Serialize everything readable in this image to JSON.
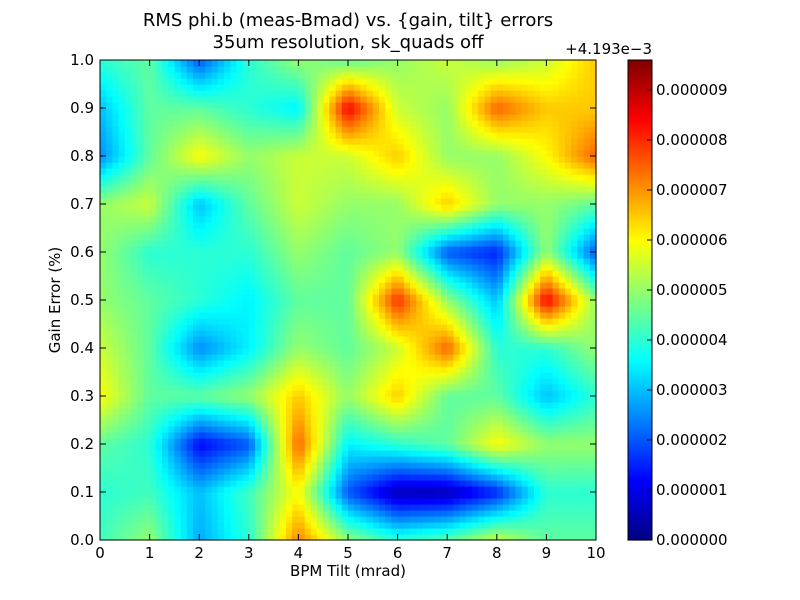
{
  "chart_data": {
    "type": "heatmap",
    "title": "RMS phi.b (meas-Bmad) vs. {gain, tilt} errors",
    "subtitle": "35um resolution, sk_quads off",
    "xlabel": "BPM Tilt (mrad)",
    "ylabel": "Gain Error (%)",
    "xlim": [
      0,
      10
    ],
    "ylim": [
      0,
      1.0
    ],
    "x_ticks": [
      "0",
      "1",
      "2",
      "3",
      "4",
      "5",
      "6",
      "7",
      "8",
      "9",
      "10"
    ],
    "y_ticks": [
      "0.0",
      "0.1",
      "0.2",
      "0.3",
      "0.4",
      "0.5",
      "0.6",
      "0.7",
      "0.8",
      "0.9",
      "1.0"
    ],
    "colormap": "jet",
    "colorbar": {
      "offset_label": "+4.193e−3",
      "range": [
        0,
        9.6e-06
      ],
      "ticks": [
        "0.000000",
        "0.000001",
        "0.000002",
        "0.000003",
        "0.000004",
        "0.000005",
        "0.000006",
        "0.000007",
        "0.000008",
        "0.000009"
      ]
    },
    "x": [
      0,
      1,
      2,
      3,
      4,
      5,
      6,
      7,
      8,
      9,
      10
    ],
    "y": [
      0.0,
      0.1,
      0.2,
      0.3,
      0.4,
      0.5,
      0.6,
      0.7,
      0.8,
      0.9,
      1.0
    ],
    "z_units_note": "values in units of 1e-6 above offset",
    "z": [
      [
        4.2,
        5.0,
        2.8,
        4.0,
        7.2,
        5.0,
        4.0,
        4.5,
        5.5,
        4.5,
        4.5
      ],
      [
        4.0,
        4.2,
        3.0,
        4.2,
        6.0,
        2.0,
        0.5,
        0.5,
        1.5,
        4.0,
        4.0
      ],
      [
        4.5,
        4.0,
        1.2,
        2.0,
        7.5,
        3.5,
        4.0,
        4.5,
        6.0,
        5.0,
        5.0
      ],
      [
        6.0,
        4.5,
        4.5,
        5.0,
        6.5,
        5.0,
        6.5,
        4.5,
        4.5,
        3.0,
        4.0
      ],
      [
        5.5,
        4.5,
        2.5,
        3.5,
        5.0,
        4.5,
        5.5,
        7.5,
        4.0,
        4.0,
        5.0
      ],
      [
        5.0,
        4.5,
        4.0,
        3.5,
        4.5,
        4.5,
        8.0,
        5.0,
        3.0,
        8.5,
        5.0
      ],
      [
        5.0,
        4.0,
        4.0,
        4.0,
        5.0,
        4.5,
        5.0,
        2.0,
        1.5,
        5.0,
        2.0
      ],
      [
        5.0,
        5.5,
        3.0,
        4.5,
        5.5,
        5.0,
        5.0,
        6.5,
        5.0,
        5.0,
        4.5
      ],
      [
        2.5,
        4.5,
        6.0,
        5.0,
        5.5,
        5.5,
        6.5,
        5.0,
        5.0,
        6.0,
        7.5
      ],
      [
        3.0,
        4.5,
        4.5,
        4.0,
        3.5,
        8.5,
        5.5,
        5.0,
        7.5,
        6.5,
        6.5
      ],
      [
        4.0,
        4.5,
        2.0,
        4.0,
        5.0,
        4.5,
        5.0,
        5.5,
        5.0,
        5.5,
        6.5
      ]
    ]
  }
}
